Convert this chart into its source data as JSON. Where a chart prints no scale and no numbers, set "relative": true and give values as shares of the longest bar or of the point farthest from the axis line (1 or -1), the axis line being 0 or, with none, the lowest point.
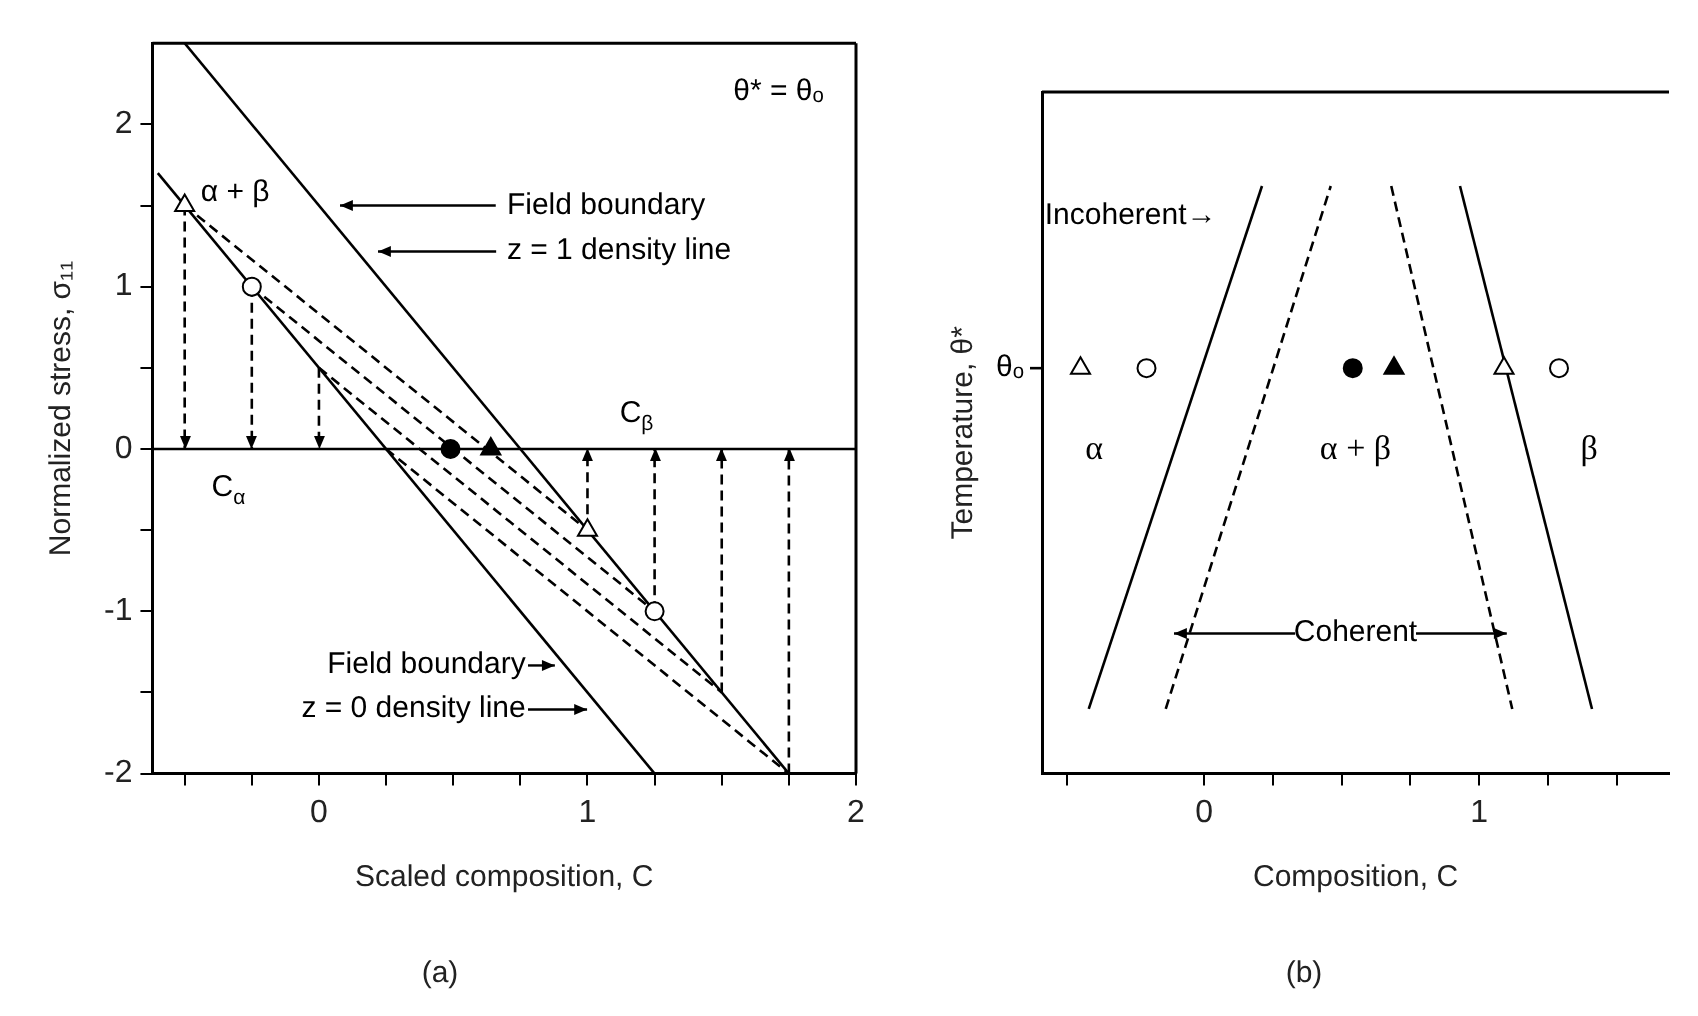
{
  "chart_data": [
    {
      "type": "line",
      "title": "(a)",
      "xlabel": "Scaled composition, C",
      "ylabel": "Normalized stress, σ₁₁",
      "xlim": [
        -0.62,
        2
      ],
      "ylim": [
        -2,
        2.5
      ],
      "xticks": [
        {
          "value": -0.5,
          "label": null
        },
        {
          "value": -0.25,
          "label": null
        },
        0,
        {
          "value": 0.25,
          "label": null
        },
        {
          "value": 0.5,
          "label": null
        },
        {
          "value": 0.75,
          "label": null
        },
        1,
        {
          "value": 1.25,
          "label": null
        },
        {
          "value": 1.5,
          "label": null
        },
        {
          "value": 1.75,
          "label": null
        },
        2
      ],
      "yticks": [
        -2,
        {
          "value": -1.5,
          "label": null
        },
        -1,
        {
          "value": -0.5,
          "label": null
        },
        0,
        {
          "value": 0.5,
          "label": null
        },
        1,
        {
          "value": 1.5,
          "label": null
        },
        2
      ],
      "grid": false,
      "legend": false,
      "ref_lines": [
        {
          "axis": "y",
          "value": 0,
          "color": "#000000",
          "line_style": "solid"
        }
      ],
      "annotations": [
        "θ* = θₒ",
        "α + β",
        "Field boundary",
        "z = 1 density line",
        "C$_{β}$",
        "C$_{α}$",
        "Field boundary",
        "z = 0 density line"
      ],
      "series": [
        {
          "type": "line",
          "color": "#000000",
          "line_style": "solid",
          "marker": "none",
          "x": [
            -0.5,
            1.75
          ],
          "values": [
            2.5,
            -2
          ]
        },
        {
          "type": "line",
          "color": "#000000",
          "line_style": "solid",
          "marker": "none",
          "x": [
            -0.6,
            1.25
          ],
          "values": [
            1.7,
            -2
          ]
        },
        {
          "type": "line",
          "color": "#000000",
          "line_style": "dashed",
          "marker": "none",
          "x": [
            -0.5,
            1,
            null,
            -0.25,
            1.25,
            null,
            0,
            1.5,
            null,
            0.25,
            1.75
          ],
          "values": [
            1.5,
            -0.5,
            null,
            1,
            -1,
            null,
            0.5,
            -1.5,
            null,
            0,
            -2
          ]
        },
        {
          "type": "line",
          "color": "#000000",
          "line_style": "dashed",
          "marker": "none",
          "x": [
            -0.5,
            -0.5,
            null,
            -0.25,
            -0.25,
            null,
            0,
            0
          ],
          "values": [
            1.5,
            0,
            null,
            1,
            0,
            null,
            0.5,
            0
          ]
        },
        {
          "type": "line",
          "color": "#000000",
          "line_style": "dashed",
          "marker": "none",
          "x": [
            1,
            1,
            null,
            1.25,
            1.25,
            null,
            1.5,
            1.5,
            null,
            1.75,
            1.75
          ],
          "values": [
            -0.5,
            0,
            null,
            -1,
            0,
            null,
            -1.5,
            0,
            null,
            -2,
            0
          ]
        },
        {
          "type": "scatter",
          "color": "#ffffff",
          "marker": "triangle",
          "x": [
            -0.5,
            1
          ],
          "values": [
            1.5,
            -0.5
          ]
        },
        {
          "type": "scatter",
          "color": "#ffffff",
          "marker": "circle",
          "x": [
            -0.25,
            1.25
          ],
          "values": [
            1,
            -1
          ]
        },
        {
          "type": "scatter",
          "color": "#000000",
          "marker": "circle",
          "x": [
            0.49
          ],
          "values": [
            0
          ]
        },
        {
          "type": "scatter",
          "color": "#000000",
          "marker": "triangle",
          "x": [
            0.64
          ],
          "values": [
            0
          ]
        }
      ]
    },
    {
      "type": "line",
      "title": "(b)",
      "xlabel": "Composition, C",
      "ylabel": "Temperature, θ*",
      "relative": true,
      "xlim": [
        -0.59,
        1.69
      ],
      "xticks": [
        {
          "value": -0.5,
          "label": null
        },
        0,
        {
          "value": 0.25,
          "label": null
        },
        {
          "value": 0.5,
          "label": null
        },
        {
          "value": 0.75,
          "label": null
        },
        1,
        {
          "value": 1.25,
          "label": null
        },
        {
          "value": 1.5,
          "label": null
        }
      ],
      "grid": false,
      "legend": false,
      "annotations": [
        "Incoherent→",
        "θₒ",
        "α",
        "α + β",
        "β",
        "Coherent"
      ],
      "series": [
        {
          "type": "line",
          "color": "#000000",
          "line_style": "solid",
          "marker": "none",
          "x": [
            -0.42,
            0.21
          ],
          "values": [
            0.11,
            1
          ]
        },
        {
          "type": "line",
          "color": "#000000",
          "line_style": "dashed",
          "marker": "none",
          "x": [
            -0.14,
            0.46
          ],
          "values": [
            0.11,
            1
          ]
        },
        {
          "type": "line",
          "color": "#000000",
          "line_style": "dashed",
          "marker": "none",
          "x": [
            0.68,
            1.12
          ],
          "values": [
            1,
            0.11
          ]
        },
        {
          "type": "line",
          "color": "#000000",
          "line_style": "solid",
          "marker": "none",
          "x": [
            0.93,
            1.41
          ],
          "values": [
            1,
            0.11
          ]
        },
        {
          "type": "scatter",
          "color": "#ffffff",
          "marker": "triangle",
          "x": [
            -0.45,
            1.09
          ],
          "values": [
            0.69,
            0.69
          ]
        },
        {
          "type": "scatter",
          "color": "#ffffff",
          "marker": "circle",
          "x": [
            -0.21,
            1.29
          ],
          "values": [
            0.69,
            0.69
          ]
        },
        {
          "type": "scatter",
          "color": "#000000",
          "marker": "circle",
          "x": [
            0.54
          ],
          "values": [
            0.69
          ]
        },
        {
          "type": "scatter",
          "color": "#000000",
          "marker": "triangle",
          "x": [
            0.69
          ],
          "values": [
            0.69
          ]
        }
      ]
    }
  ]
}
